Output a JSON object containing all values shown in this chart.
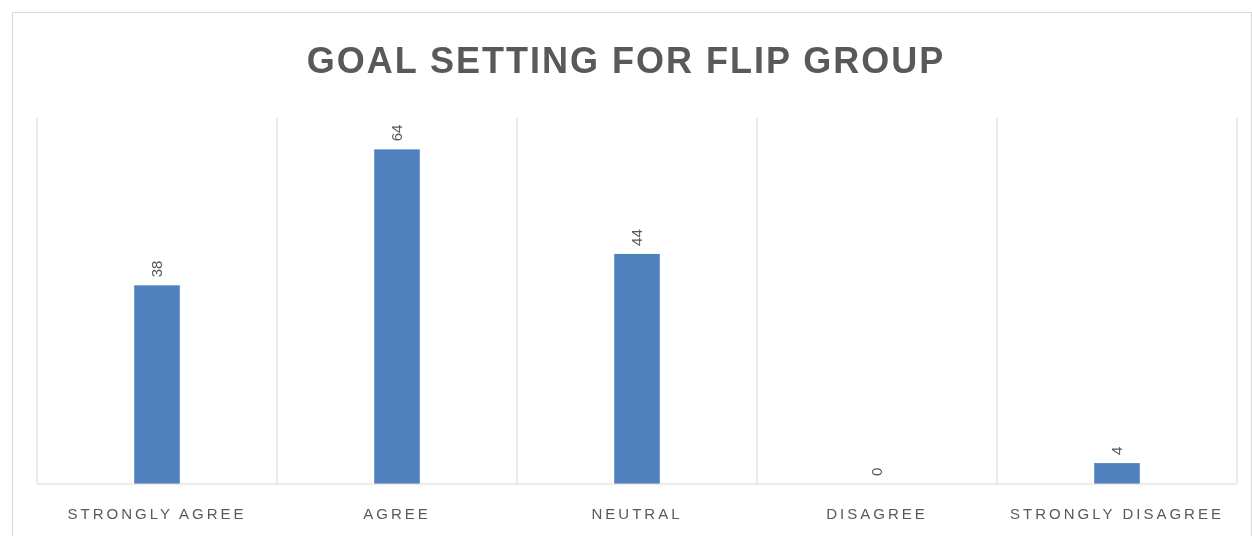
{
  "chart_data": {
    "type": "bar",
    "title": "GOAL SETTING FOR FLIP GROUP",
    "categories": [
      "STRONGLY AGREE",
      "AGREE",
      "NEUTRAL",
      "DISAGREE",
      "STRONGLY DISAGREE"
    ],
    "values": [
      38,
      64,
      44,
      0,
      4
    ],
    "color": "#4f81bd",
    "ylim": [
      0,
      70
    ],
    "data_labels": true,
    "grid": "x"
  }
}
